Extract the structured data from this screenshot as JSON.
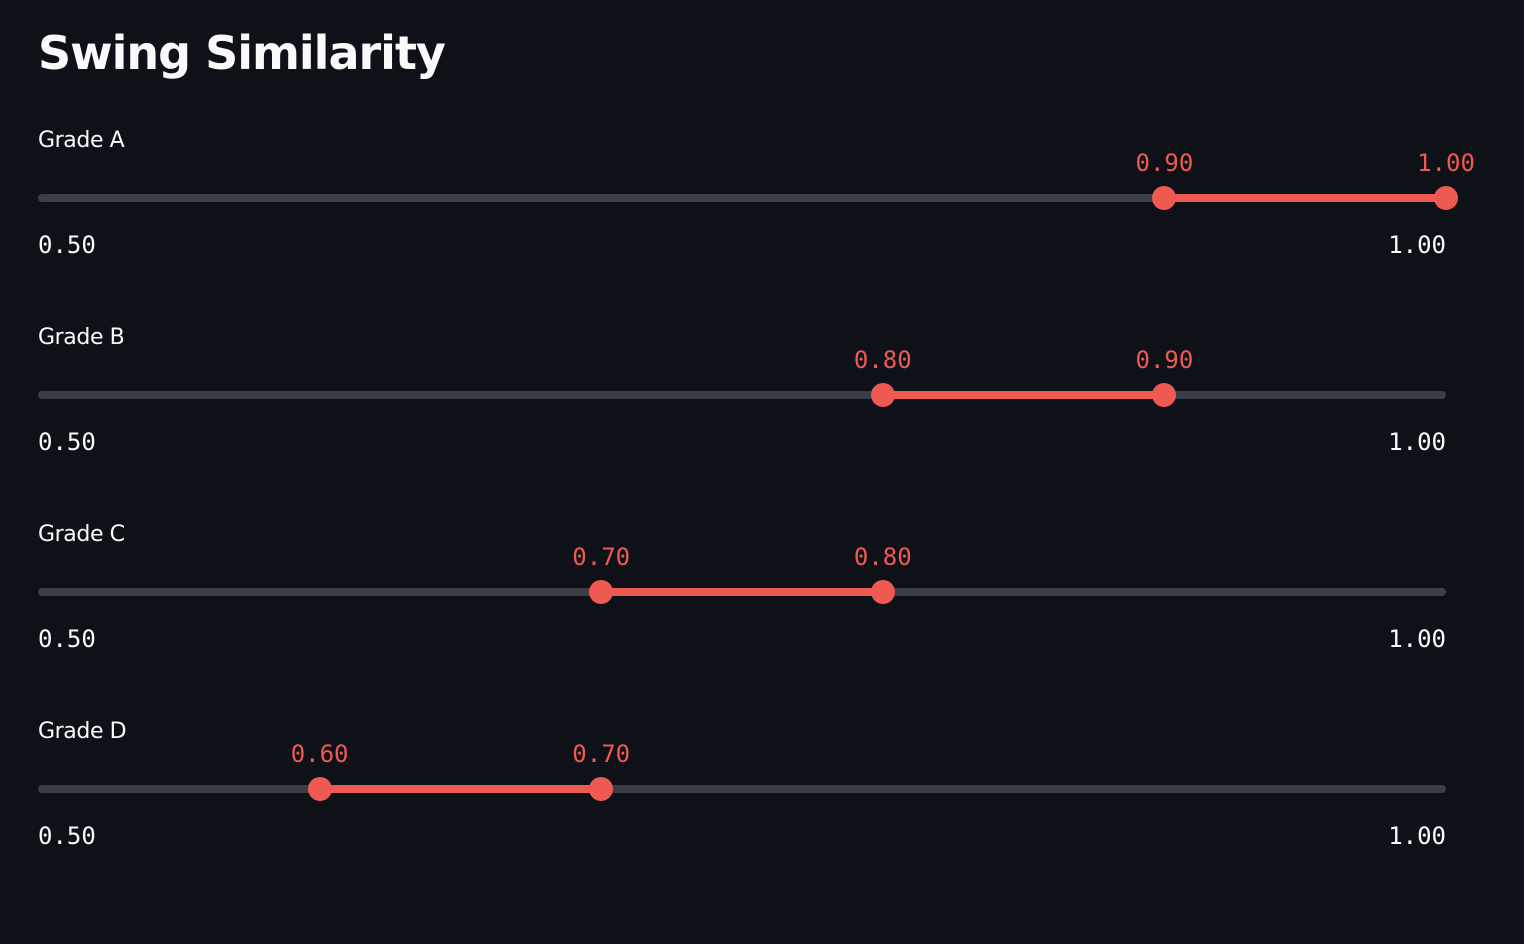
{
  "page": {
    "title": "Swing Similarity"
  },
  "colors": {
    "background": "#0e1117",
    "accent": "#ee5a52",
    "track": "#3b3e46",
    "text": "#fafafa"
  },
  "sliders": [
    {
      "label": "Grade A",
      "min": 0.5,
      "max": 1.0,
      "min_label": "0.50",
      "max_label": "1.00",
      "low": 0.9,
      "high": 1.0,
      "low_label": "0.90",
      "high_label": "1.00"
    },
    {
      "label": "Grade B",
      "min": 0.5,
      "max": 1.0,
      "min_label": "0.50",
      "max_label": "1.00",
      "low": 0.8,
      "high": 0.9,
      "low_label": "0.80",
      "high_label": "0.90"
    },
    {
      "label": "Grade C",
      "min": 0.5,
      "max": 1.0,
      "min_label": "0.50",
      "max_label": "1.00",
      "low": 0.7,
      "high": 0.8,
      "low_label": "0.70",
      "high_label": "0.80"
    },
    {
      "label": "Grade D",
      "min": 0.5,
      "max": 1.0,
      "min_label": "0.50",
      "max_label": "1.00",
      "low": 0.6,
      "high": 0.7,
      "low_label": "0.60",
      "high_label": "0.70"
    }
  ]
}
